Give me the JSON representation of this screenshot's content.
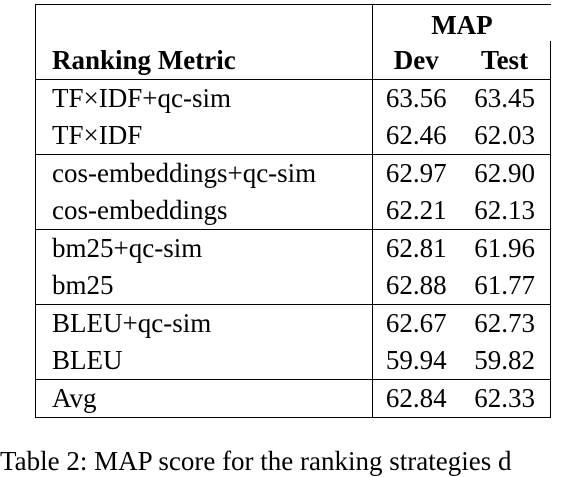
{
  "table": {
    "group_header": "MAP",
    "column_headers": [
      "Ranking Metric",
      "Dev",
      "Test"
    ],
    "rows": [
      {
        "metric": "TF×IDF+qc-sim",
        "dev": "63.56",
        "test": "63.45"
      },
      {
        "metric": "TF×IDF",
        "dev": "62.46",
        "test": "62.03"
      },
      {
        "metric": "cos-embeddings+qc-sim",
        "dev": "62.97",
        "test": "62.90"
      },
      {
        "metric": "cos-embeddings",
        "dev": "62.21",
        "test": "62.13"
      },
      {
        "metric": "bm25+qc-sim",
        "dev": "62.81",
        "test": "61.96"
      },
      {
        "metric": "bm25",
        "dev": "62.88",
        "test": "61.77"
      },
      {
        "metric": "BLEU+qc-sim",
        "dev": "62.67",
        "test": "62.73"
      },
      {
        "metric": "BLEU",
        "dev": "59.94",
        "test": "59.82"
      },
      {
        "metric": "Avg",
        "dev": "62.84",
        "test": "62.33"
      }
    ]
  },
  "caption": "Table 2: MAP score for the ranking strategies d"
}
